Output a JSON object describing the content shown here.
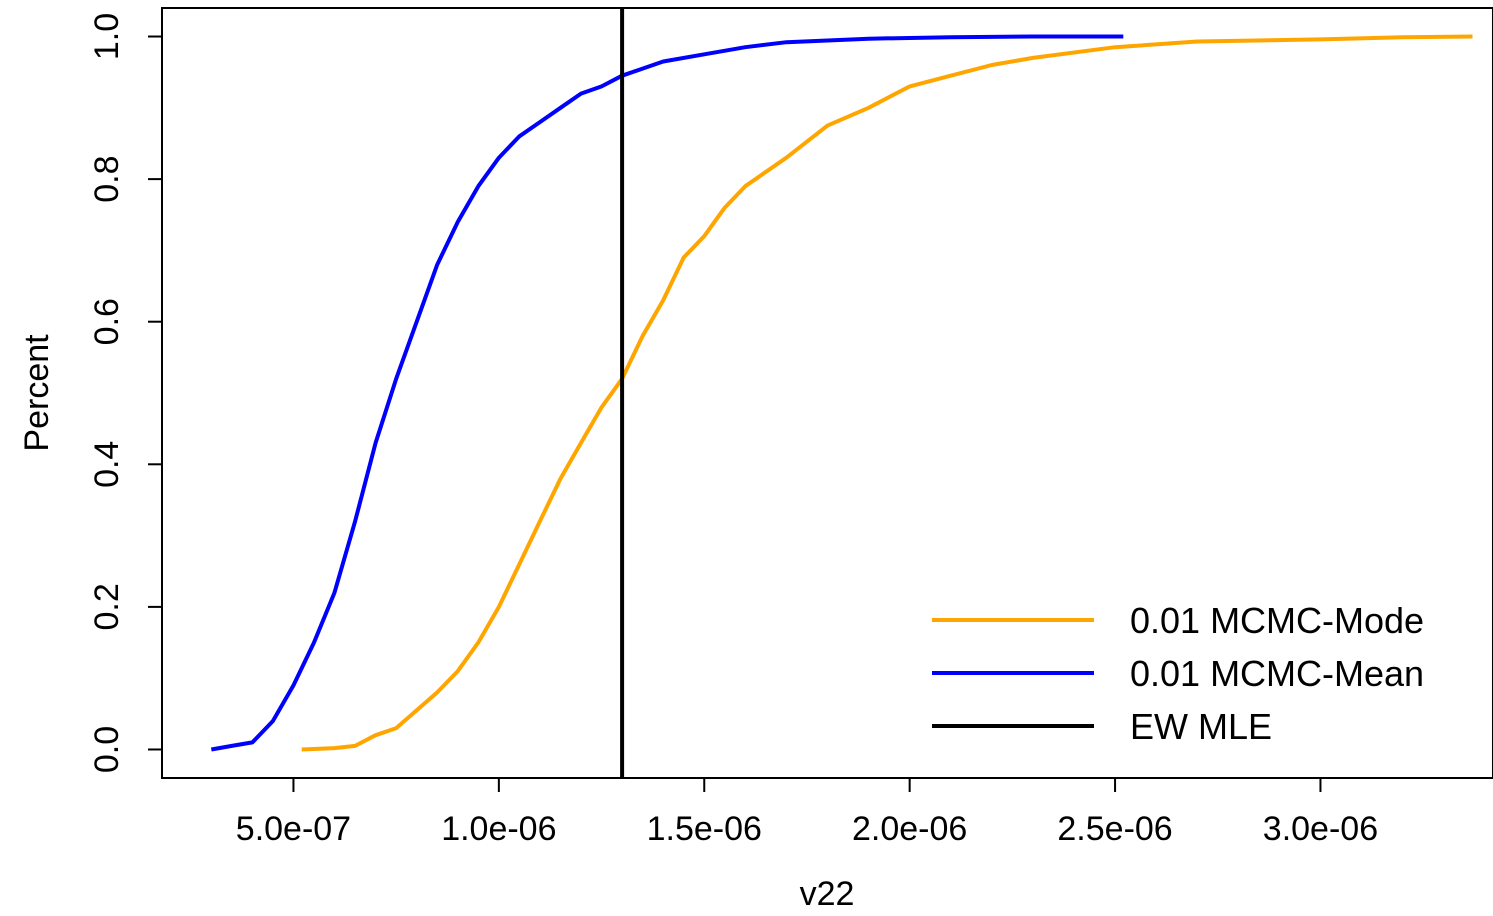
{
  "chart_data": {
    "type": "line",
    "xlabel": "v22",
    "ylabel": "Percent",
    "xlim": [
      1.8e-07,
      3.42e-06
    ],
    "ylim": [
      -0.04,
      1.04
    ],
    "x_ticks": [
      5e-07,
      1e-06,
      1.5e-06,
      2e-06,
      2.5e-06,
      3e-06
    ],
    "x_tick_labels": [
      "5.0e-07",
      "1.0e-06",
      "1.5e-06",
      "2.0e-06",
      "2.5e-06",
      "3.0e-06"
    ],
    "y_ticks": [
      0.0,
      0.2,
      0.4,
      0.6,
      0.8,
      1.0
    ],
    "y_tick_labels": [
      "0.0",
      "0.2",
      "0.4",
      "0.6",
      "0.8",
      "1.0"
    ],
    "grid": false,
    "legend_position": "bottom-right",
    "series": [
      {
        "name": "0.01 MCMC-Mode",
        "color": "#FFA500",
        "x": [
          5.2e-07,
          6e-07,
          6.5e-07,
          7e-07,
          7.5e-07,
          8e-07,
          8.5e-07,
          9e-07,
          9.5e-07,
          1e-06,
          1.05e-06,
          1.1e-06,
          1.15e-06,
          1.2e-06,
          1.25e-06,
          1.3e-06,
          1.35e-06,
          1.4e-06,
          1.45e-06,
          1.5e-06,
          1.55e-06,
          1.6e-06,
          1.7e-06,
          1.8e-06,
          1.9e-06,
          2e-06,
          2.1e-06,
          2.2e-06,
          2.3e-06,
          2.5e-06,
          2.7e-06,
          3e-06,
          3.2e-06,
          3.37e-06
        ],
        "y": [
          0.0,
          0.002,
          0.005,
          0.02,
          0.03,
          0.055,
          0.08,
          0.11,
          0.15,
          0.2,
          0.26,
          0.32,
          0.38,
          0.43,
          0.48,
          0.52,
          0.58,
          0.63,
          0.69,
          0.72,
          0.76,
          0.79,
          0.83,
          0.875,
          0.9,
          0.93,
          0.945,
          0.96,
          0.97,
          0.985,
          0.993,
          0.996,
          0.999,
          1.0
        ]
      },
      {
        "name": "0.01 MCMC-Mean",
        "color": "#0000FF",
        "x": [
          3e-07,
          3.5e-07,
          4e-07,
          4.5e-07,
          5e-07,
          5.5e-07,
          6e-07,
          6.5e-07,
          7e-07,
          7.5e-07,
          8e-07,
          8.5e-07,
          9e-07,
          9.5e-07,
          1e-06,
          1.05e-06,
          1.1e-06,
          1.15e-06,
          1.2e-06,
          1.25e-06,
          1.3e-06,
          1.35e-06,
          1.4e-06,
          1.5e-06,
          1.6e-06,
          1.7e-06,
          1.9e-06,
          2.1e-06,
          2.3e-06,
          2.52e-06
        ],
        "y": [
          0.0,
          0.005,
          0.01,
          0.04,
          0.09,
          0.15,
          0.22,
          0.32,
          0.43,
          0.52,
          0.6,
          0.68,
          0.74,
          0.79,
          0.83,
          0.86,
          0.88,
          0.9,
          0.92,
          0.93,
          0.945,
          0.955,
          0.965,
          0.975,
          0.985,
          0.992,
          0.997,
          0.999,
          1.0,
          1.0
        ]
      }
    ],
    "reference_lines": [
      {
        "name": "EW MLE",
        "orientation": "vertical",
        "x": 1.3e-06,
        "color": "#000000"
      }
    ]
  }
}
